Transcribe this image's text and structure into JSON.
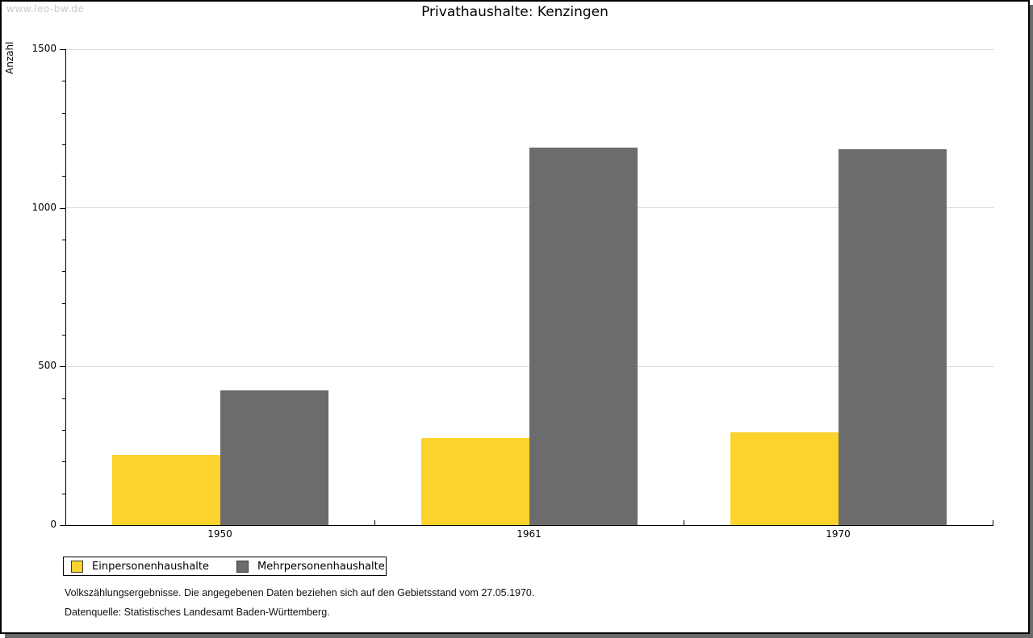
{
  "watermark": "www.leo-bw.de",
  "title": "Privathaushalte: Kenzingen",
  "chart_data": {
    "type": "bar",
    "title": "Privathaushalte: Kenzingen",
    "categories": [
      "1950",
      "1961",
      "1970"
    ],
    "series": [
      {
        "name": "Einpersonenhaushalte",
        "color": "#FCD32C",
        "values": [
          222,
          275,
          293
        ]
      },
      {
        "name": "Mehrpersonenhaushalte",
        "color": "#6C6C6C",
        "values": [
          425,
          1190,
          1186
        ]
      }
    ],
    "xlabel": "",
    "ylabel": "Anzahl",
    "ylim": [
      0,
      1500
    ],
    "y_major_step": 500,
    "y_minor_step": 100,
    "y_tick_labels": [
      "0",
      "500",
      "1000",
      "1500"
    ],
    "grid": true,
    "gridline_color": "#dcdcdc",
    "legend_position": "bottom-left"
  },
  "footnotes": [
    "Volkszählungsergebnisse. Die angegebenen Daten beziehen sich auf den Gebietsstand vom 27.05.1970.",
    "Datenquelle: Statistisches Landesamt Baden-Württemberg."
  ]
}
